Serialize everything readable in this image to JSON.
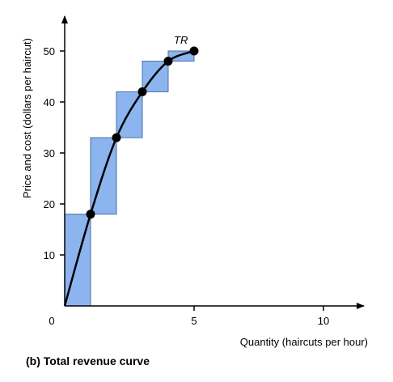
{
  "caption": "(b) Total revenue curve",
  "chart_data": {
    "type": "line",
    "ylabel": "Price and cost (dollars per haircut)",
    "xlabel": "Quantity (haircuts per hour)",
    "xlim": [
      0,
      12
    ],
    "ylim": [
      0,
      56
    ],
    "x_ticks": [
      0,
      5,
      10
    ],
    "y_ticks": [
      10,
      20,
      30,
      40,
      50
    ],
    "grid": false,
    "bars_color": "#8cb4ee",
    "bars_edge_color": "#4a6fa8",
    "curve_color": "#000000",
    "bars": [
      {
        "x0": 0,
        "x1": 1,
        "bottom": 0,
        "top": 18
      },
      {
        "x0": 1,
        "x1": 2,
        "bottom": 18,
        "top": 33
      },
      {
        "x0": 2,
        "x1": 3,
        "bottom": 33,
        "top": 42
      },
      {
        "x0": 3,
        "x1": 4,
        "bottom": 42,
        "top": 48
      },
      {
        "x0": 4,
        "x1": 5,
        "bottom": 48,
        "top": 50
      }
    ],
    "series": [
      {
        "name": "TR",
        "x": [
          0,
          1,
          2,
          3,
          4,
          5
        ],
        "y": [
          0,
          18,
          33,
          42,
          48,
          50
        ]
      }
    ],
    "points": [
      {
        "x": 1,
        "y": 18
      },
      {
        "x": 2,
        "y": 33
      },
      {
        "x": 3,
        "y": 42
      },
      {
        "x": 4,
        "y": 48
      },
      {
        "x": 5,
        "y": 50
      }
    ]
  }
}
